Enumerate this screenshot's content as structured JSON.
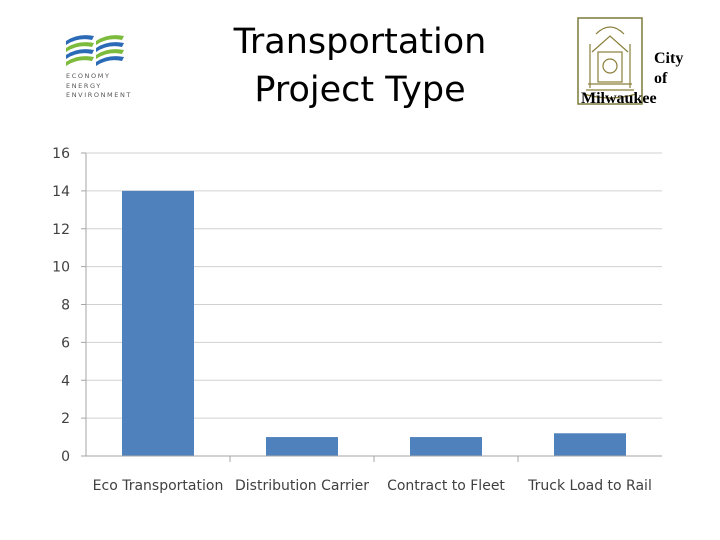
{
  "logos": {
    "left": {
      "icon": "economy-energy-environment-logo",
      "lines": [
        "ECONOMY",
        "ENERGY",
        "ENVIRONMENT"
      ],
      "colors": {
        "blue": "#2a6ab6",
        "green": "#7dbb3c"
      }
    },
    "right": {
      "icon": "city-seal-logo",
      "lines": [
        "City",
        "of",
        "Milwaukee"
      ]
    }
  },
  "title_lines": [
    "Transportation",
    "Project Type"
  ],
  "chart_data": {
    "type": "bar",
    "title": "Transportation Project Type",
    "categories": [
      "Eco Transportation",
      "Distribution Carrier",
      "Contract to Fleet",
      "Truck Load to Rail"
    ],
    "values": [
      14,
      1,
      1,
      1.2
    ],
    "ylim": [
      0,
      16
    ],
    "yticks": [
      0,
      2,
      4,
      6,
      8,
      10,
      12,
      14,
      16
    ],
    "xlabel": "",
    "ylabel": "",
    "grid": true,
    "legend": "none",
    "colors": {
      "bar": "#4f81bd",
      "grid": "#d0d0d0",
      "axis": "#a6a6a6",
      "text": "#404040"
    }
  }
}
